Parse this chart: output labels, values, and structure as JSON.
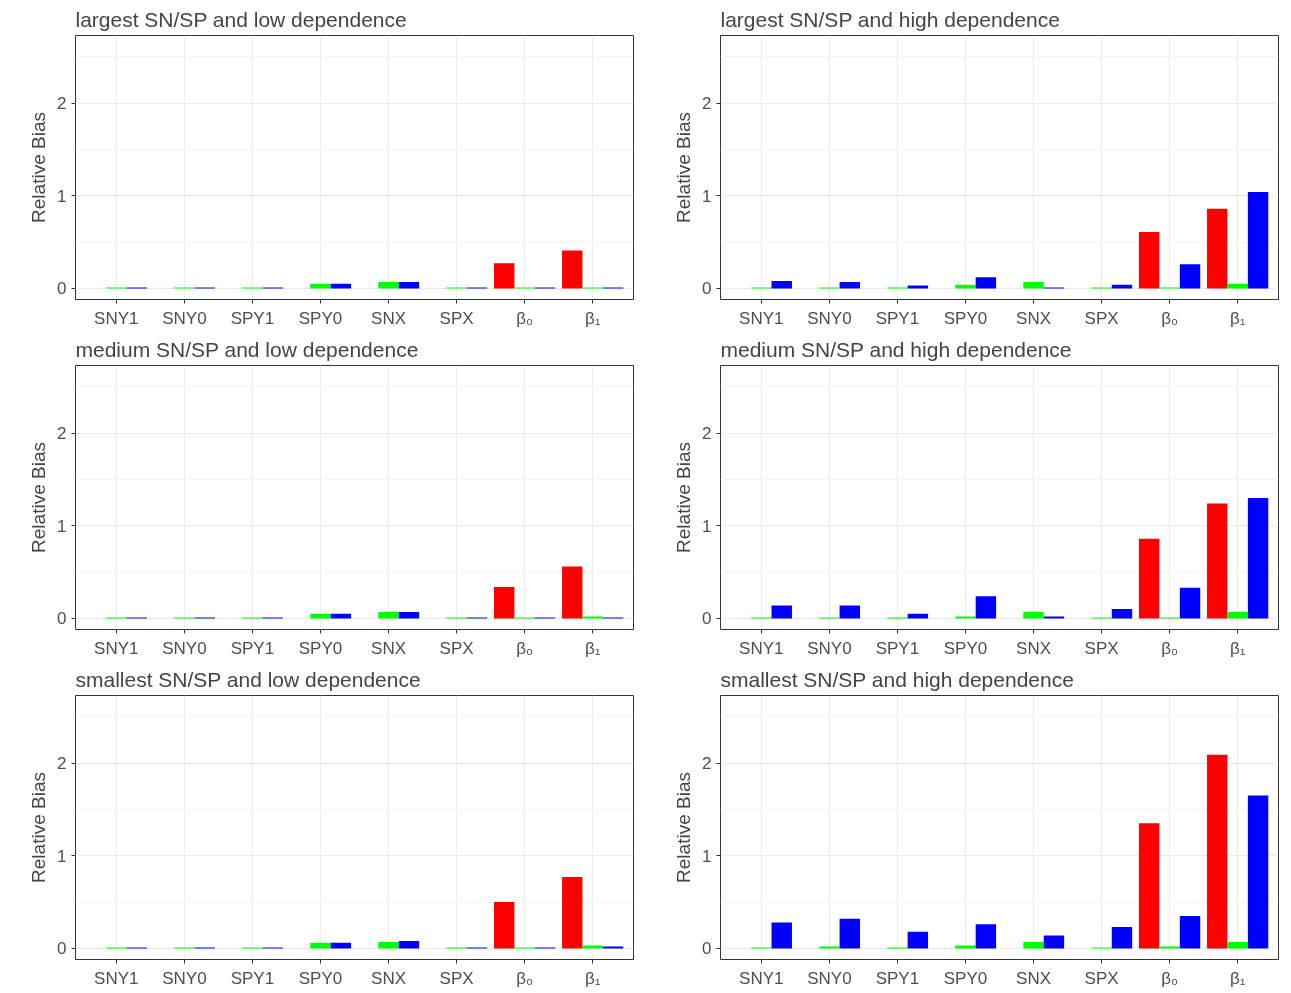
{
  "chart_data": [
    {
      "type": "bar",
      "title": "largest SN/SP and low dependence",
      "ylabel": "Relative Bias",
      "categories": [
        "SNY1",
        "SNY0",
        "SPY1",
        "SPY0",
        "SNX",
        "SPX",
        "β₀",
        "β₁"
      ],
      "ylim": [
        -0.12,
        2.73
      ],
      "yticks": [
        0,
        1,
        2
      ],
      "grid": true,
      "series": [
        {
          "color": "#ff0000",
          "values": [
            0,
            0,
            0,
            0,
            0,
            0,
            0.27,
            0.41
          ]
        },
        {
          "color": "#00ff00",
          "values": [
            0.01,
            0.01,
            0.01,
            0.05,
            0.07,
            0.01,
            0.01,
            0.01
          ]
        },
        {
          "color": "#0000ff",
          "values": [
            0.01,
            0.01,
            0.01,
            0.05,
            0.07,
            0.01,
            0.01,
            0.01
          ]
        }
      ]
    },
    {
      "type": "bar",
      "title": "largest SN/SP and high dependence",
      "ylabel": "Relative Bias",
      "categories": [
        "SNY1",
        "SNY0",
        "SPY1",
        "SPY0",
        "SNX",
        "SPX",
        "β₀",
        "β₁"
      ],
      "ylim": [
        -0.12,
        2.73
      ],
      "yticks": [
        0,
        1,
        2
      ],
      "grid": true,
      "series": [
        {
          "color": "#ff0000",
          "values": [
            0,
            0,
            0,
            0,
            0,
            0,
            0.61,
            0.86
          ]
        },
        {
          "color": "#00ff00",
          "values": [
            0.01,
            0.01,
            0.01,
            0.04,
            0.07,
            0.01,
            0.01,
            0.05
          ]
        },
        {
          "color": "#0000ff",
          "values": [
            0.08,
            0.07,
            0.03,
            0.12,
            0.01,
            0.04,
            0.26,
            1.04
          ]
        }
      ]
    },
    {
      "type": "bar",
      "title": "medium SN/SP and low dependence",
      "ylabel": "Relative Bias",
      "categories": [
        "SNY1",
        "SNY0",
        "SPY1",
        "SPY0",
        "SNX",
        "SPX",
        "β₀",
        "β₁"
      ],
      "ylim": [
        -0.12,
        2.73
      ],
      "yticks": [
        0,
        1,
        2
      ],
      "grid": true,
      "series": [
        {
          "color": "#ff0000",
          "values": [
            0,
            0,
            0,
            0,
            0,
            0,
            0.34,
            0.56
          ]
        },
        {
          "color": "#00ff00",
          "values": [
            0.01,
            0.01,
            0.01,
            0.05,
            0.07,
            0.01,
            0.01,
            0.02
          ]
        },
        {
          "color": "#0000ff",
          "values": [
            0.01,
            0.01,
            0.01,
            0.05,
            0.07,
            0.01,
            0.01,
            0.01
          ]
        }
      ]
    },
    {
      "type": "bar",
      "title": "medium SN/SP and high dependence",
      "ylabel": "Relative Bias",
      "categories": [
        "SNY1",
        "SNY0",
        "SPY1",
        "SPY0",
        "SNX",
        "SPX",
        "β₀",
        "β₁"
      ],
      "ylim": [
        -0.12,
        2.73
      ],
      "yticks": [
        0,
        1,
        2
      ],
      "grid": true,
      "series": [
        {
          "color": "#ff0000",
          "values": [
            0,
            0,
            0,
            0,
            0,
            0,
            0.86,
            1.24
          ]
        },
        {
          "color": "#00ff00",
          "values": [
            0.01,
            0.01,
            0.01,
            0.02,
            0.07,
            0.01,
            0.01,
            0.07
          ]
        },
        {
          "color": "#0000ff",
          "values": [
            0.14,
            0.14,
            0.05,
            0.24,
            0.02,
            0.1,
            0.33,
            1.3
          ]
        }
      ]
    },
    {
      "type": "bar",
      "title": "smallest SN/SP and low dependence",
      "ylabel": "Relative Bias",
      "categories": [
        "SNY1",
        "SNY0",
        "SPY1",
        "SPY0",
        "SNX",
        "SPX",
        "β₀",
        "β₁"
      ],
      "ylim": [
        -0.12,
        2.73
      ],
      "yticks": [
        0,
        1,
        2
      ],
      "grid": true,
      "series": [
        {
          "color": "#ff0000",
          "values": [
            0,
            0,
            0,
            0,
            0,
            0,
            0.5,
            0.77
          ]
        },
        {
          "color": "#00ff00",
          "values": [
            0.01,
            0.01,
            0.01,
            0.06,
            0.07,
            0.01,
            0.01,
            0.03
          ]
        },
        {
          "color": "#0000ff",
          "values": [
            0.01,
            0.01,
            0.01,
            0.06,
            0.08,
            0.01,
            0.01,
            0.02
          ]
        }
      ]
    },
    {
      "type": "bar",
      "title": "smallest SN/SP and high dependence",
      "ylabel": "Relative Bias",
      "categories": [
        "SNY1",
        "SNY0",
        "SPY1",
        "SPY0",
        "SNX",
        "SPX",
        "β₀",
        "β₁"
      ],
      "ylim": [
        -0.12,
        2.73
      ],
      "yticks": [
        0,
        1,
        2
      ],
      "grid": true,
      "series": [
        {
          "color": "#ff0000",
          "values": [
            0,
            0,
            0,
            0,
            0,
            0,
            1.35,
            2.09
          ]
        },
        {
          "color": "#00ff00",
          "values": [
            0.01,
            0.02,
            0.01,
            0.03,
            0.07,
            0.01,
            0.02,
            0.07
          ]
        },
        {
          "color": "#0000ff",
          "values": [
            0.28,
            0.32,
            0.18,
            0.26,
            0.14,
            0.23,
            0.35,
            1.65
          ]
        }
      ]
    }
  ]
}
